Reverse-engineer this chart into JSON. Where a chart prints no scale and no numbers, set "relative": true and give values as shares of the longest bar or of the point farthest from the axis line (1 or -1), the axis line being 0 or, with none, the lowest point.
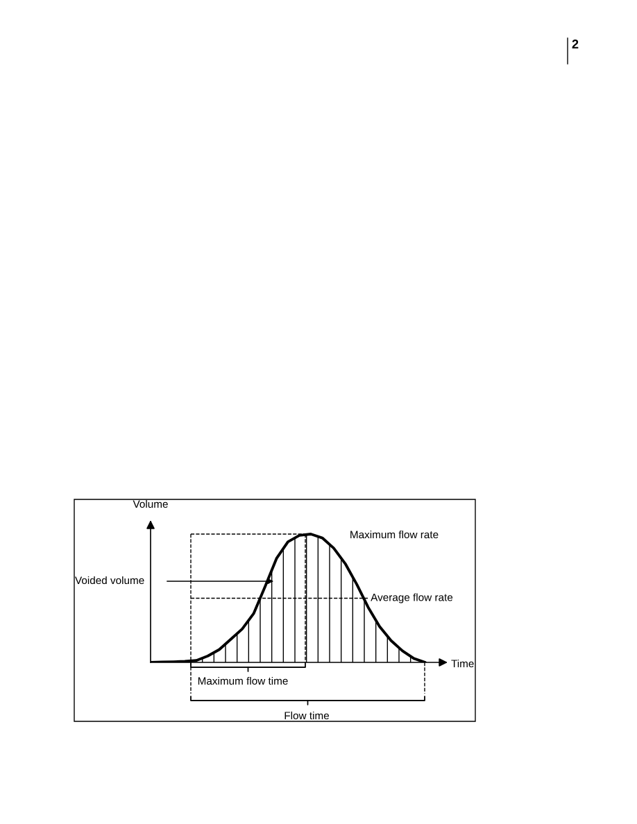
{
  "chart_data": {
    "type": "area",
    "relative": true,
    "xlabel": "Time",
    "ylabel": "Volume",
    "categories": [
      null,
      null,
      null,
      null,
      null,
      null,
      null,
      null,
      null,
      null,
      null,
      null,
      null,
      null,
      null,
      null,
      null,
      null,
      null,
      null,
      null,
      null,
      null,
      null,
      null
    ],
    "series": [
      {
        "color": "#000000",
        "values": [
          0,
          0.003,
          0.005,
          0.008,
          0.015,
          0.05,
          0.1,
          0.18,
          0.26,
          0.38,
          0.59,
          0.81,
          0.94,
          0.99,
          1.0,
          0.97,
          0.89,
          0.77,
          0.61,
          0.43,
          0.28,
          0.17,
          0.09,
          0.03,
          0
        ]
      }
    ],
    "ref_lines": [
      {
        "axis": "y",
        "value": 0.5,
        "label": "Average flow rate",
        "color": "#000000",
        "line_style": "dashed"
      }
    ],
    "annotations": [
      "Maximum flow rate",
      "Voided volume",
      "Maximum flow time",
      "Flow time",
      "2"
    ],
    "legend": false
  }
}
